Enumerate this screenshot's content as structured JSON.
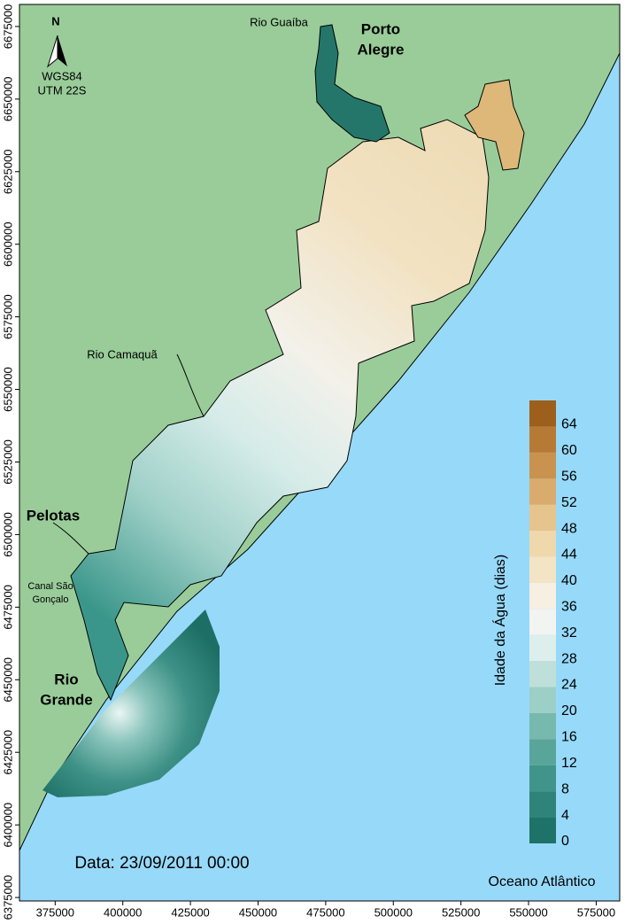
{
  "map": {
    "ocean_label": "Oceano Atlântico",
    "date": "Data: 23/09/2011 00:00",
    "north": "N",
    "projection": [
      "WGS84",
      "UTM 22S"
    ],
    "places": [
      {
        "label": [
          "Rio Guaíba"
        ]
      },
      {
        "label": [
          "Porto",
          "Alegre"
        ]
      },
      {
        "label": [
          "Rio Camaquã"
        ]
      },
      {
        "label": [
          "Pelotas"
        ]
      },
      {
        "label": [
          "Canal São",
          "Gonçalo"
        ]
      },
      {
        "label": [
          "Rio",
          "Grande"
        ]
      }
    ],
    "xlim": [
      361800,
      583700
    ],
    "xticks": [
      375000,
      400000,
      425000,
      450000,
      475000,
      500000,
      525000,
      550000,
      575000
    ],
    "ylim": [
      6373800,
      6682600
    ],
    "yticks": [
      6375000,
      6400000,
      6425000,
      6450000,
      6475000,
      6500000,
      6525000,
      6550000,
      6575000,
      6600000,
      6625000,
      6650000,
      6675000
    ]
  },
  "colorbar": {
    "title": "Idade da Água (dias)",
    "lim": [
      0,
      68
    ],
    "ticks": [
      0,
      4,
      8,
      12,
      16,
      20,
      24,
      28,
      32,
      36,
      40,
      44,
      48,
      52,
      56,
      60,
      64
    ],
    "colors": [
      "#1e7268",
      "#2f8379",
      "#41948a",
      "#5aa59a",
      "#78b9ae",
      "#9ccfc6",
      "#bfe0da",
      "#dcefec",
      "#f2f4f1",
      "#f6efe2",
      "#f3e4c5",
      "#efd8ac",
      "#e5c48d",
      "#d9ac6d",
      "#c9924f",
      "#b77a35",
      "#9d5f1c"
    ]
  }
}
